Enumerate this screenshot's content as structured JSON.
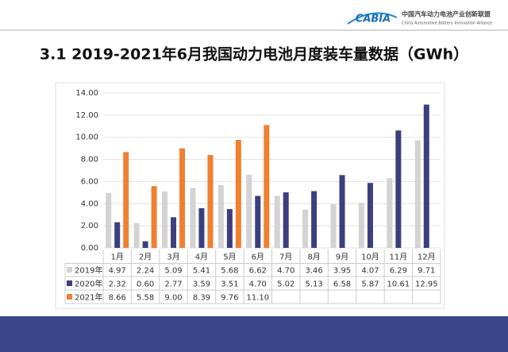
{
  "header": {
    "logo": "CABIA",
    "org_cn": "中国汽车动力电池产业创新联盟",
    "org_en": "China Automotive Battery Innovation Alliance"
  },
  "chart_data": {
    "type": "bar",
    "title": "3.1 2019-2021年6月我国动力电池月度装车量数据（GWh）",
    "categories": [
      "1月",
      "2月",
      "3月",
      "4月",
      "5月",
      "6月",
      "7月",
      "8月",
      "9月",
      "10月",
      "11月",
      "12月"
    ],
    "series": [
      {
        "name": "2019年",
        "color": "#d3d3d3",
        "values": [
          4.97,
          2.24,
          5.09,
          5.41,
          5.68,
          6.62,
          4.7,
          3.46,
          3.95,
          4.07,
          6.29,
          9.71
        ],
        "value_labels": [
          "4.97",
          "2.24",
          "5.09",
          "5.41",
          "5.68",
          "6.62",
          "4.70",
          "3.46",
          "3.95",
          "4.07",
          "6.29",
          "9.71"
        ]
      },
      {
        "name": "2020年",
        "color": "#3c3f7e",
        "values": [
          2.32,
          0.6,
          2.77,
          3.59,
          3.51,
          4.7,
          5.02,
          5.13,
          6.58,
          5.87,
          10.61,
          12.95
        ],
        "value_labels": [
          "2.32",
          "0.60",
          "2.77",
          "3.59",
          "3.51",
          "4.70",
          "5.02",
          "5.13",
          "6.58",
          "5.87",
          "10.61",
          "12.95"
        ]
      },
      {
        "name": "2021年",
        "color": "#f08030",
        "values": [
          8.66,
          5.58,
          9.0,
          8.39,
          9.76,
          11.1,
          null,
          null,
          null,
          null,
          null,
          null
        ],
        "value_labels": [
          "8.66",
          "5.58",
          "9.00",
          "8.39",
          "9.76",
          "11.10",
          null,
          null,
          null,
          null,
          null,
          null
        ]
      }
    ],
    "ylim": [
      0,
      14
    ],
    "yticks": [
      {
        "value": 0,
        "label": "0.00"
      },
      {
        "value": 2,
        "label": "2.00"
      },
      {
        "value": 4,
        "label": "4.00"
      },
      {
        "value": 6,
        "label": "6.00"
      },
      {
        "value": 8,
        "label": "8.00"
      },
      {
        "value": 10,
        "label": "10.00"
      },
      {
        "value": 12,
        "label": "12.00"
      },
      {
        "value": 14,
        "label": "14.00"
      }
    ],
    "grid": true
  }
}
